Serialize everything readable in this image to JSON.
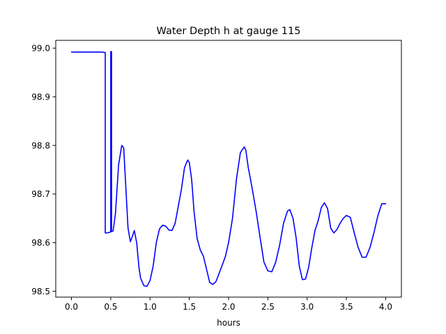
{
  "chart_data": {
    "type": "line",
    "title": "Water Depth h at gauge 115",
    "xlabel": "hours",
    "ylabel": "",
    "xlim": [
      -0.2,
      4.2
    ],
    "ylim": [
      98.488,
      99.016
    ],
    "xticks": [
      0.0,
      0.5,
      1.0,
      1.5,
      2.0,
      2.5,
      3.0,
      3.5,
      4.0
    ],
    "xtick_labels": [
      "0.0",
      "0.5",
      "1.0",
      "1.5",
      "2.0",
      "2.5",
      "3.0",
      "3.5",
      "4.0"
    ],
    "yticks": [
      98.5,
      98.6,
      98.7,
      98.8,
      98.9,
      99.0
    ],
    "ytick_labels": [
      "98.5",
      "98.6",
      "98.7",
      "98.8",
      "98.9",
      "99.0"
    ],
    "grid": false,
    "series": [
      {
        "color": "#0000ff",
        "x": [
          0.0,
          0.2,
          0.3,
          0.38,
          0.425,
          0.43,
          0.43,
          0.45,
          0.48,
          0.495,
          0.5,
          0.5,
          0.505,
          0.51,
          0.51,
          0.53,
          0.56,
          0.6,
          0.64,
          0.665,
          0.69,
          0.72,
          0.75,
          0.78,
          0.8,
          0.83,
          0.86,
          0.88,
          0.92,
          0.96,
          1.0,
          1.04,
          1.08,
          1.12,
          1.16,
          1.2,
          1.24,
          1.28,
          1.32,
          1.36,
          1.4,
          1.44,
          1.48,
          1.5,
          1.53,
          1.56,
          1.6,
          1.64,
          1.68,
          1.72,
          1.76,
          1.8,
          1.84,
          1.88,
          1.92,
          1.96,
          2.0,
          2.05,
          2.1,
          2.15,
          2.2,
          2.22,
          2.25,
          2.3,
          2.35,
          2.4,
          2.45,
          2.5,
          2.55,
          2.6,
          2.65,
          2.7,
          2.75,
          2.78,
          2.82,
          2.86,
          2.9,
          2.94,
          2.98,
          3.02,
          3.06,
          3.1,
          3.14,
          3.18,
          3.22,
          3.26,
          3.3,
          3.34,
          3.38,
          3.42,
          3.46,
          3.5,
          3.55,
          3.6,
          3.65,
          3.7,
          3.75,
          3.8,
          3.85,
          3.9,
          3.95,
          4.0
        ],
        "y": [
          98.992,
          98.992,
          98.992,
          98.992,
          98.991,
          98.991,
          98.62,
          98.62,
          98.621,
          98.622,
          98.622,
          98.993,
          98.993,
          98.993,
          98.623,
          98.624,
          98.66,
          98.76,
          98.8,
          98.795,
          98.72,
          98.63,
          98.602,
          98.615,
          98.625,
          98.6,
          98.548,
          98.527,
          98.512,
          98.51,
          98.522,
          98.552,
          98.6,
          98.628,
          98.636,
          98.634,
          98.626,
          98.625,
          98.64,
          98.675,
          98.71,
          98.755,
          98.77,
          98.765,
          98.73,
          98.665,
          98.608,
          98.585,
          98.572,
          98.545,
          98.518,
          98.514,
          98.52,
          98.537,
          98.554,
          98.572,
          98.6,
          98.65,
          98.73,
          98.785,
          98.797,
          98.79,
          98.755,
          98.712,
          98.665,
          98.612,
          98.56,
          98.542,
          98.54,
          98.56,
          98.595,
          98.64,
          98.665,
          98.668,
          98.65,
          98.61,
          98.552,
          98.524,
          98.525,
          98.55,
          98.59,
          98.625,
          98.645,
          98.672,
          98.682,
          98.67,
          98.63,
          98.62,
          98.627,
          98.64,
          98.65,
          98.656,
          98.652,
          98.62,
          98.59,
          98.57,
          98.57,
          98.59,
          98.62,
          98.655,
          98.68,
          98.68
        ]
      }
    ]
  }
}
